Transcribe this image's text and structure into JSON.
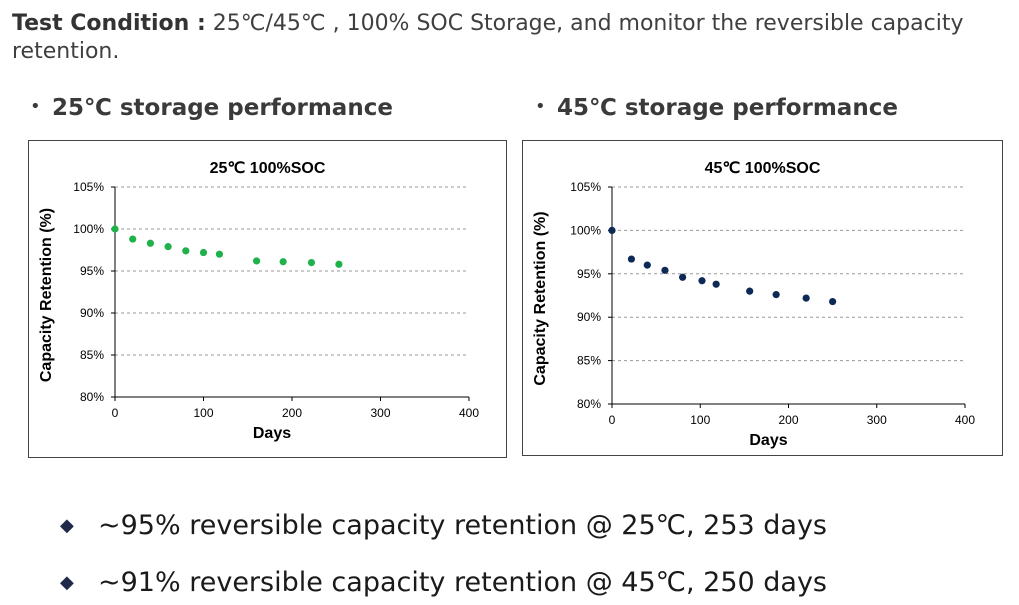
{
  "intro": {
    "label": "Test Condition :",
    "text": " 25℃/45℃ , 100% SOC Storage, and monitor the reversible capacity retention."
  },
  "sections": [
    {
      "bullet": "•",
      "title": "25℃ storage performance"
    },
    {
      "bullet": "•",
      "title": "45℃ storage performance"
    }
  ],
  "chart_data": [
    {
      "type": "scatter",
      "title": "25℃ 100%SOC",
      "xlabel": "Days",
      "ylabel": "Capacity Retention (%)",
      "xlim": [
        0,
        400
      ],
      "ylim": [
        80,
        105
      ],
      "x_ticks": [
        "0",
        "100",
        "200",
        "300",
        "400"
      ],
      "y_ticks": [
        "80%",
        "85%",
        "90%",
        "95%",
        "100%",
        "105%"
      ],
      "grid": "horizontal dashed",
      "marker_color": "#1fb24a",
      "series": [
        {
          "x": [
            0,
            20,
            40,
            60,
            80,
            100,
            118,
            160,
            190,
            222,
            253
          ],
          "y": [
            100,
            98.8,
            98.3,
            97.9,
            97.4,
            97.2,
            97.0,
            96.2,
            96.1,
            96.0,
            95.8
          ]
        }
      ]
    },
    {
      "type": "scatter",
      "title": "45℃ 100%SOC",
      "xlabel": "Days",
      "ylabel": "Capacity Retention (%)",
      "xlim": [
        0,
        400
      ],
      "ylim": [
        80,
        105
      ],
      "x_ticks": [
        "0",
        "100",
        "200",
        "300",
        "400"
      ],
      "y_ticks": [
        "80%",
        "85%",
        "90%",
        "95%",
        "100%",
        "105%"
      ],
      "grid": "horizontal dashed",
      "marker_color": "#0d2a57",
      "series": [
        {
          "x": [
            0,
            22,
            40,
            60,
            80,
            102,
            118,
            156,
            186,
            220,
            250
          ],
          "y": [
            100,
            96.7,
            96.0,
            95.4,
            94.6,
            94.2,
            93.8,
            93.0,
            92.6,
            92.2,
            91.8
          ]
        }
      ]
    }
  ],
  "summary": [
    {
      "bullet": "◆",
      "text": "~95% reversible capacity retention @ 25℃, 253 days"
    },
    {
      "bullet": "◆",
      "text": "~91% reversible capacity retention @ 45℃, 250 days"
    }
  ]
}
